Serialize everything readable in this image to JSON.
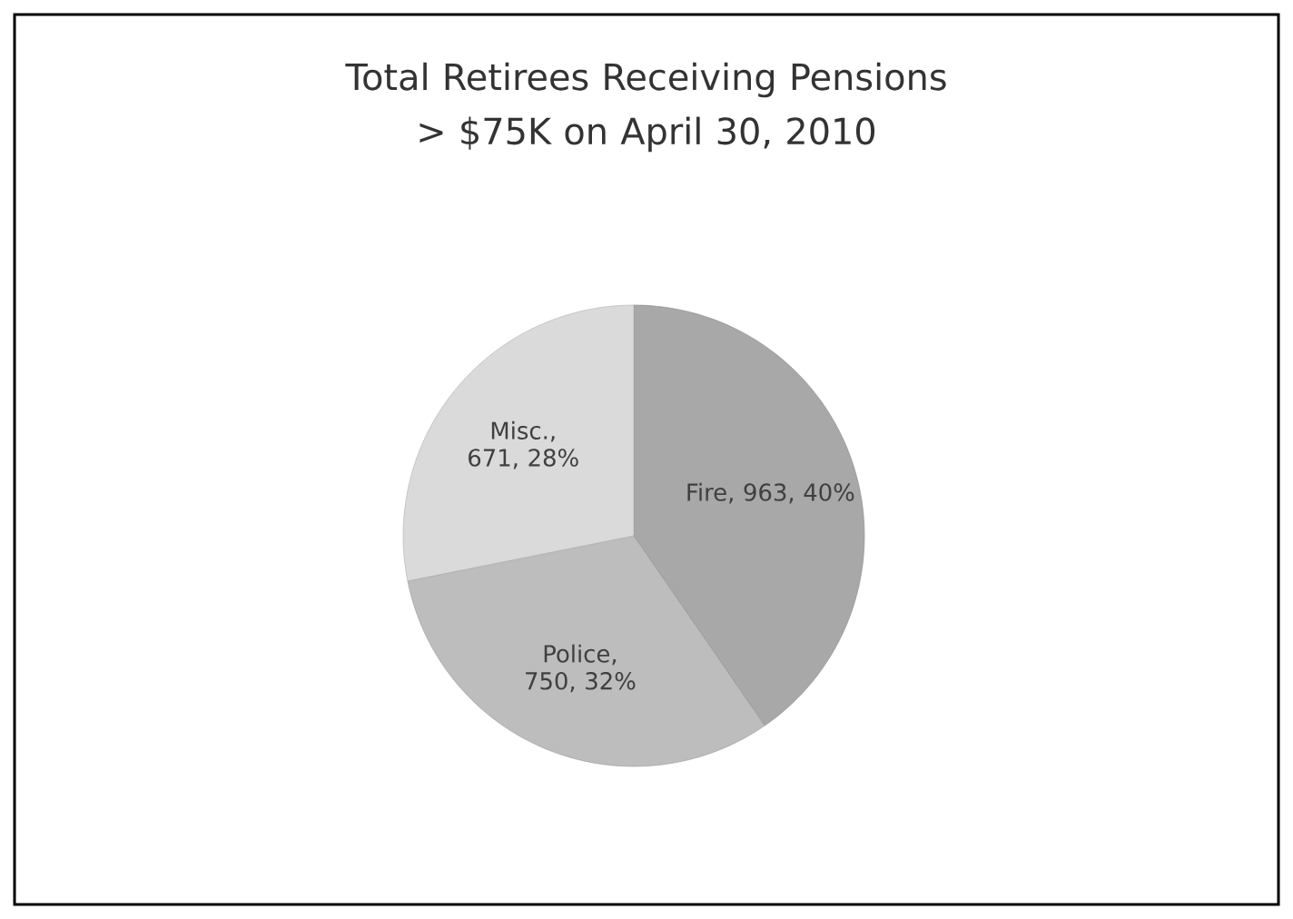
{
  "chart_data": {
    "type": "pie",
    "title": "Total Retirees Receiving Pensions > $75K on April 30, 2010",
    "categories": [
      "Fire, 963, 40%",
      "Police, 750, 32%",
      "Misc., 671, 28%"
    ],
    "values": [
      963,
      750,
      671
    ],
    "colors": [
      "#a8a8a8",
      "#bdbdbd",
      "#dadada"
    ]
  }
}
